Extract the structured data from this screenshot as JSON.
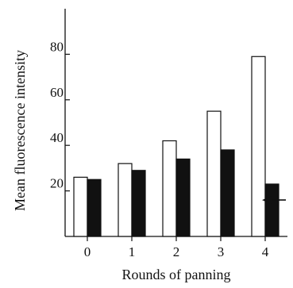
{
  "chart_data": {
    "type": "bar",
    "title": "",
    "xlabel": "Rounds of panning",
    "ylabel": "Mean fluorescence intensity",
    "categories": [
      "0",
      "1",
      "2",
      "3",
      "4"
    ],
    "series": [
      {
        "fill": "#ffffff",
        "values": [
          26,
          32,
          42,
          55,
          79
        ]
      },
      {
        "fill": "#111111",
        "values": [
          25,
          29,
          34,
          38,
          23
        ]
      }
    ],
    "ylim": [
      0,
      100
    ],
    "yticks": [
      20,
      40,
      60,
      80
    ],
    "grid": false,
    "legend": "none",
    "annotations": [
      {
        "type": "arrow",
        "pointing": "left",
        "y": 16
      }
    ]
  }
}
